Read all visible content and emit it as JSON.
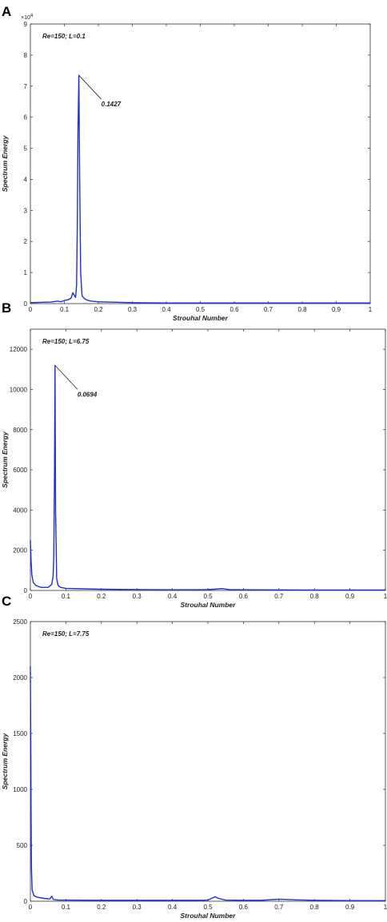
{
  "chart_data": [
    {
      "panel": "A",
      "type": "line",
      "annotation": "Re=150; L=0.1",
      "xlabel": "Strouhal Number",
      "ylabel": "Spectrum Energy",
      "xlim": [
        0,
        1
      ],
      "ylim": [
        0,
        9
      ],
      "y_multiplier": "×10",
      "y_multiplier_exp": "4",
      "xticks": [
        "0",
        "0.1",
        "0.2",
        "0.3",
        "0.4",
        "0.5",
        "0.6",
        "0.7",
        "0.8",
        "0.9",
        "1"
      ],
      "yticks": [
        "0",
        "1",
        "2",
        "3",
        "4",
        "5",
        "6",
        "7",
        "8",
        "9"
      ],
      "peak_label": "0.1427",
      "peak": {
        "x": 0.1427,
        "y": 7.35
      },
      "series": [
        {
          "color": "#1f2fd6",
          "x": [
            0,
            0.03,
            0.06,
            0.08,
            0.09,
            0.1,
            0.11,
            0.12,
            0.125,
            0.13,
            0.133,
            0.136,
            0.138,
            0.14,
            0.1427,
            0.145,
            0.148,
            0.152,
            0.16,
            0.17,
            0.18,
            0.2,
            0.3,
            0.4,
            0.5,
            0.6,
            0.7,
            0.8,
            0.9,
            1.0
          ],
          "y": [
            0.03,
            0.04,
            0.05,
            0.08,
            0.06,
            0.1,
            0.12,
            0.18,
            0.35,
            0.25,
            0.2,
            0.6,
            2.5,
            5.5,
            7.35,
            4.0,
            1.0,
            0.25,
            0.15,
            0.1,
            0.08,
            0.06,
            0.03,
            0.02,
            0.02,
            0.02,
            0.02,
            0.02,
            0.02,
            0.02
          ]
        }
      ]
    },
    {
      "panel": "B",
      "type": "line",
      "annotation": "Re=150; L=6.75",
      "xlabel": "Strouhal Number",
      "ylabel": "Spectrum Energy",
      "xlim": [
        0,
        1
      ],
      "ylim": [
        0,
        13000
      ],
      "xticks": [
        "0",
        "0.1",
        "0.2",
        "0.3",
        "0.4",
        "0.5",
        "0.6",
        "0.7",
        "0.8",
        "0.9",
        "1"
      ],
      "yticks": [
        "0",
        "2000",
        "4000",
        "6000",
        "8000",
        "10000",
        "12000"
      ],
      "peak_label": "0.0694",
      "peak": {
        "x": 0.0694,
        "y": 11200
      },
      "series": [
        {
          "color": "#1f2fd6",
          "x": [
            0,
            0.002,
            0.004,
            0.008,
            0.015,
            0.03,
            0.05,
            0.06,
            0.064,
            0.066,
            0.068,
            0.0694,
            0.071,
            0.074,
            0.078,
            0.085,
            0.1,
            0.15,
            0.2,
            0.3,
            0.4,
            0.5,
            0.54,
            0.56,
            0.6,
            0.7,
            0.8,
            0.9,
            1.0
          ],
          "y": [
            2500,
            1500,
            800,
            400,
            250,
            150,
            150,
            300,
            700,
            1700,
            6000,
            11200,
            4000,
            600,
            250,
            150,
            100,
            80,
            60,
            40,
            30,
            40,
            90,
            40,
            30,
            25,
            20,
            20,
            20
          ]
        }
      ]
    },
    {
      "panel": "C",
      "type": "line",
      "annotation": "Re=150; L=7.75",
      "xlabel": "Strouhal Number",
      "ylabel": "Spectrum Energy",
      "xlim": [
        0,
        1
      ],
      "ylim": [
        0,
        2500
      ],
      "xticks": [
        "0",
        "0.1",
        "0.2",
        "0.3",
        "0.4",
        "0.5",
        "0.6",
        "0.7",
        "0.8",
        "0.9",
        "1"
      ],
      "yticks": [
        "0",
        "500",
        "1000",
        "1500",
        "2000",
        "2500"
      ],
      "series": [
        {
          "color": "#1f2fd6",
          "x": [
            0,
            0.001,
            0.002,
            0.003,
            0.005,
            0.01,
            0.02,
            0.04,
            0.055,
            0.06,
            0.065,
            0.08,
            0.1,
            0.2,
            0.3,
            0.4,
            0.48,
            0.5,
            0.52,
            0.53,
            0.55,
            0.6,
            0.65,
            0.7,
            0.75,
            0.8,
            0.9,
            1.0
          ],
          "y": [
            2100,
            1500,
            800,
            300,
            100,
            50,
            35,
            25,
            20,
            45,
            15,
            10,
            10,
            8,
            8,
            8,
            8,
            10,
            40,
            25,
            10,
            8,
            8,
            18,
            12,
            8,
            6,
            5
          ]
        }
      ]
    }
  ]
}
